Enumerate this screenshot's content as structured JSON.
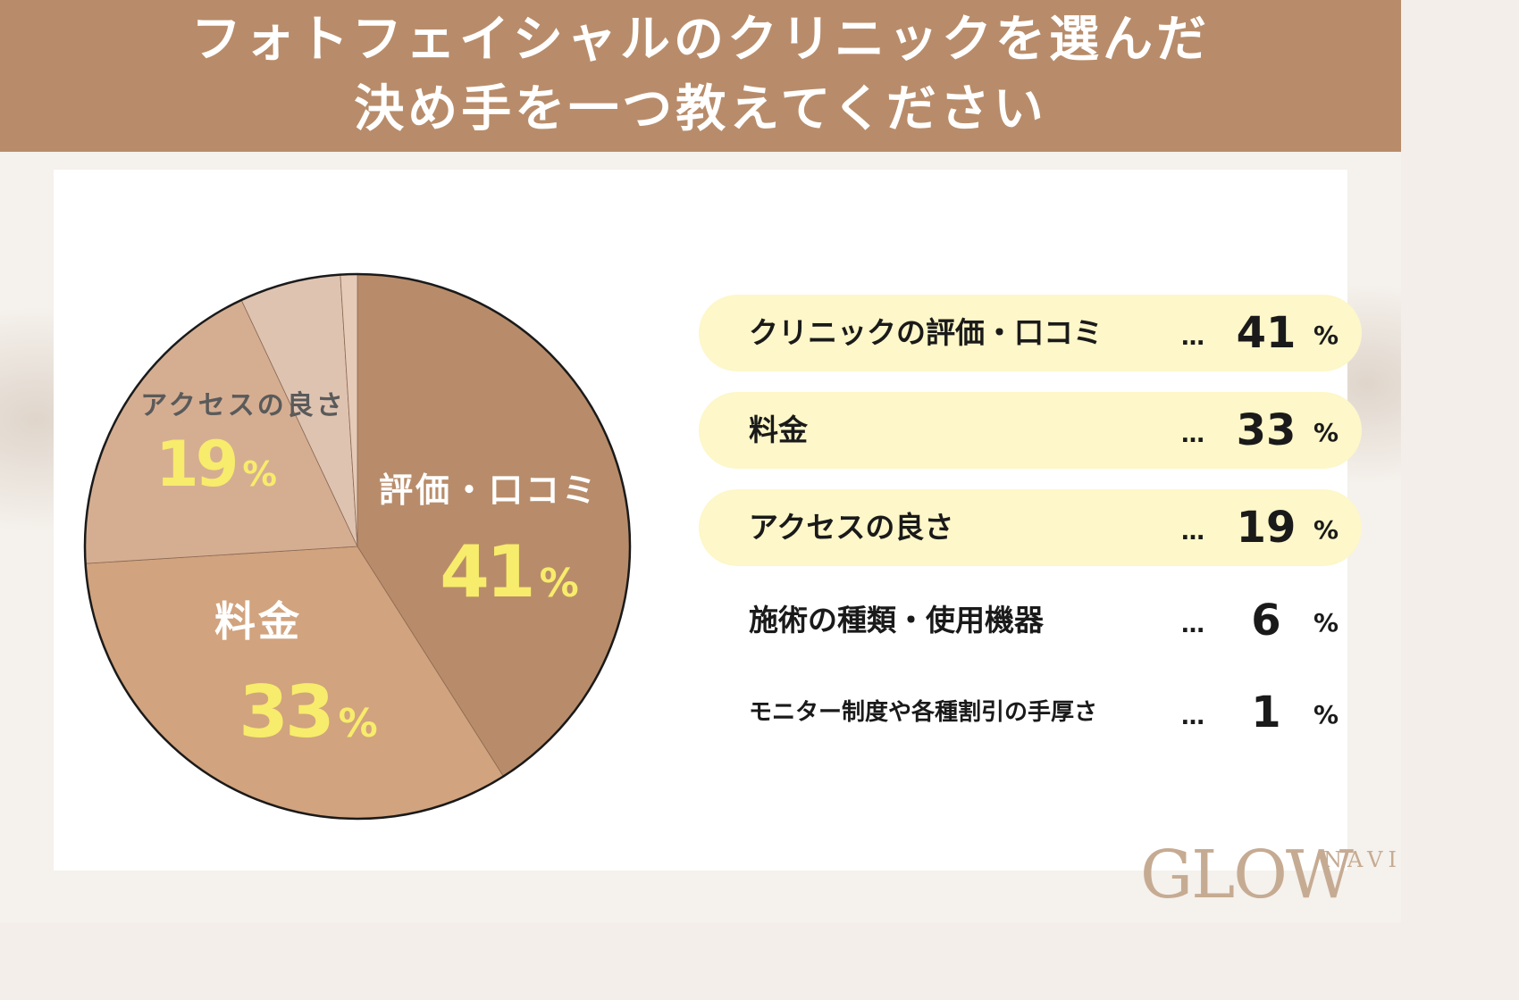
{
  "header": {
    "title_line1": "フォトフェイシャルのクリニックを選んだ",
    "title_line2": "決め手を一つ教えてください"
  },
  "chart_data": {
    "type": "pie",
    "unit": "%",
    "slices": [
      {
        "label": "クリニックの評価・口コミ",
        "pie_label": "評価・口コミ",
        "value": 41,
        "color": "#b88c6a",
        "highlight": true
      },
      {
        "label": "料金",
        "pie_label": "料金",
        "value": 33,
        "color": "#d1a37e",
        "highlight": true
      },
      {
        "label": "アクセスの良さ",
        "pie_label": "アクセスの良さ",
        "value": 19,
        "color": "#d5ae92",
        "highlight": true
      },
      {
        "label": "施術の種類・使用機器",
        "pie_label": "",
        "value": 6,
        "color": "#dfc3b1",
        "highlight": false
      },
      {
        "label": "モニター制度や各種割引の手厚さ",
        "pie_label": "",
        "value": 1,
        "color": "#e6cbb8",
        "highlight": false
      }
    ],
    "legend": {
      "ellipsis": "…",
      "placement": "right"
    },
    "label_colors": {
      "name_on_dark": "#ffffff",
      "name_on_light": "#5a5a5a",
      "percent": "#f7ec6b"
    }
  },
  "logo": {
    "text": "GLOW",
    "superscript": "NAVI"
  }
}
